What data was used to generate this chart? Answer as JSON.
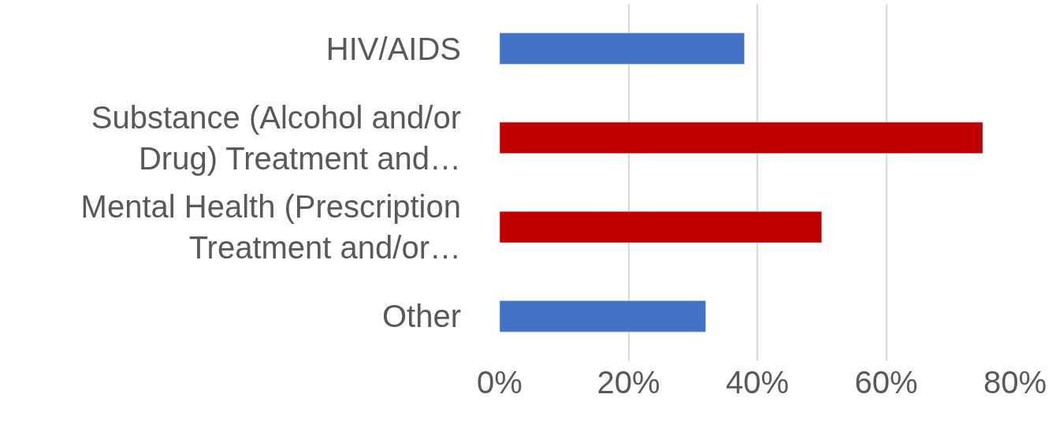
{
  "chart_data": {
    "type": "bar",
    "orientation": "horizontal",
    "categories": [
      "HIV/AIDS",
      "Substance (Alcohol and/or Drug) Treatment and…",
      "Mental Health (Prescription Treatment and/or…",
      "Other"
    ],
    "values": [
      38,
      75,
      50,
      32
    ],
    "colors": [
      "#4472c4",
      "#c00000",
      "#c00000",
      "#4472c4"
    ],
    "xlim": [
      0,
      80
    ],
    "xticks": [
      {
        "value": 0,
        "label": "0%"
      },
      {
        "value": 20,
        "label": "20%"
      },
      {
        "value": 40,
        "label": "40%"
      },
      {
        "value": 60,
        "label": "60%"
      },
      {
        "value": 80,
        "label": "80%"
      }
    ],
    "grid": "x",
    "legend": false
  }
}
